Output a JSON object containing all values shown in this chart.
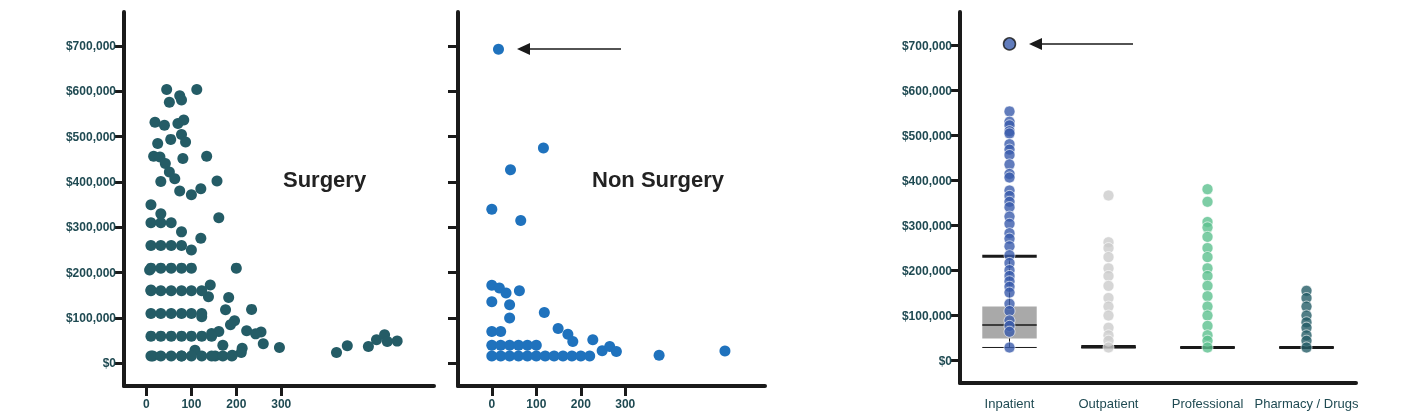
{
  "chart_data": [
    {
      "type": "scatter",
      "title": "Surgery",
      "color": "#245c66",
      "marker": "circle",
      "xlim": [
        -50,
        640
      ],
      "xticks": [
        0,
        100,
        200,
        300
      ],
      "ylim": [
        -50000,
        775000
      ],
      "yticks": [
        {
          "value": 0,
          "label": "$0"
        },
        {
          "value": 100000,
          "label": "$100,000"
        },
        {
          "value": 200000,
          "label": "$200,000"
        },
        {
          "value": 300000,
          "label": "$300,000"
        },
        {
          "value": 400000,
          "label": "$400,000"
        },
        {
          "value": 500000,
          "label": "$500,000"
        },
        {
          "value": 600000,
          "label": "$600,000"
        },
        {
          "value": 700000,
          "label": "$700,000"
        }
      ],
      "x": [
        45,
        112,
        51,
        74,
        78,
        19,
        40,
        70,
        83,
        25,
        54,
        78,
        87,
        16,
        30,
        81,
        134,
        42,
        51,
        63,
        32,
        157,
        100,
        121,
        74,
        161,
        121,
        200,
        183,
        176,
        234,
        196,
        187,
        223,
        255,
        243,
        260,
        296,
        213,
        211,
        423,
        447,
        494,
        512,
        530,
        536,
        558,
        7,
        10,
        142,
        138,
        145,
        161,
        123,
        108,
        14,
        78,
        153,
        191,
        10,
        10,
        10,
        10,
        10,
        10,
        10,
        10,
        32,
        32,
        32,
        32,
        32,
        32,
        32,
        32,
        55,
        55,
        55,
        55,
        55,
        55,
        55,
        78,
        78,
        78,
        78,
        78,
        78,
        78,
        100,
        100,
        100,
        100,
        100,
        100,
        123,
        123,
        123,
        123,
        145,
        145,
        170,
        170,
        190
      ],
      "values": [
        604000,
        604000,
        576000,
        590000,
        581000,
        532000,
        525000,
        529000,
        537000,
        485000,
        494000,
        505000,
        488000,
        457000,
        455000,
        452000,
        457000,
        441000,
        422000,
        407000,
        401000,
        402000,
        372000,
        385000,
        380000,
        321000,
        276000,
        210000,
        145000,
        118000,
        119000,
        94000,
        85000,
        72000,
        69000,
        65000,
        43000,
        35000,
        33000,
        24000,
        24000,
        39000,
        37000,
        52000,
        63000,
        48000,
        49000,
        206000,
        162000,
        173000,
        147000,
        66000,
        70000,
        103000,
        29000,
        16000,
        16000,
        16000,
        18000,
        16000,
        60000,
        110000,
        160000,
        210000,
        260000,
        310000,
        350000,
        16000,
        60000,
        110000,
        160000,
        210000,
        260000,
        310000,
        330000,
        16000,
        60000,
        110000,
        160000,
        210000,
        260000,
        310000,
        16000,
        60000,
        110000,
        160000,
        210000,
        260000,
        290000,
        16000,
        60000,
        110000,
        160000,
        210000,
        250000,
        16000,
        60000,
        110000,
        160000,
        16000,
        60000,
        16000,
        40000,
        16000
      ]
    },
    {
      "type": "scatter",
      "title": "Non Surgery",
      "color": "#1f72bd",
      "marker": "circle",
      "tick_labels": "x",
      "xlim": [
        -76,
        614
      ],
      "xticks": [
        0,
        100,
        200,
        300
      ],
      "ylim": [
        -50000,
        775000
      ],
      "yticks": [
        {
          "value": 0,
          "label": null
        },
        {
          "value": 100000,
          "label": null
        },
        {
          "value": 200000,
          "label": null
        },
        {
          "value": 300000,
          "label": null
        },
        {
          "value": 400000,
          "label": null
        },
        {
          "value": 500000,
          "label": null
        },
        {
          "value": 600000,
          "label": null
        },
        {
          "value": 700000,
          "label": null
        }
      ],
      "x": [
        15,
        116,
        42,
        0,
        65,
        0,
        17,
        32,
        62,
        118,
        0,
        40,
        149,
        171,
        227,
        182,
        248,
        265,
        280,
        376,
        524,
        0,
        20,
        40,
        60,
        80,
        100,
        120,
        140,
        160,
        180,
        200,
        220,
        0,
        20,
        40,
        60,
        80,
        100,
        0,
        20,
        40
      ],
      "values": [
        693000,
        475000,
        427000,
        340000,
        315000,
        172000,
        166000,
        155000,
        160000,
        112000,
        136000,
        129000,
        77000,
        64000,
        52000,
        48000,
        28000,
        37000,
        26000,
        18000,
        27000,
        16000,
        16000,
        16000,
        16000,
        16000,
        16000,
        16000,
        16000,
        16000,
        16000,
        16000,
        16000,
        40000,
        40000,
        40000,
        40000,
        40000,
        40000,
        70000,
        70000,
        100000
      ]
    },
    {
      "type": "box",
      "colors": [
        "#9a9a9a",
        "#1a1a1a",
        "#1a1a1a",
        "#1a1a1a"
      ],
      "categories": [
        "Inpatient",
        "Outpatient",
        "Professional",
        "Pharmacy / Drugs"
      ],
      "ylim": [
        -50000,
        775000
      ],
      "yticks": [
        {
          "value": 0,
          "label": "$0"
        },
        {
          "value": 100000,
          "label": "$100,000"
        },
        {
          "value": 200000,
          "label": "$200,000"
        },
        {
          "value": 300000,
          "label": "$300,000"
        },
        {
          "value": 400000,
          "label": "$400,000"
        },
        {
          "value": 500000,
          "label": "$500,000"
        },
        {
          "value": 600000,
          "label": "$600,000"
        },
        {
          "value": 700000,
          "label": "$700,000"
        }
      ],
      "boxes": [
        {
          "low": 29000,
          "q1": 49000,
          "median": 79000,
          "q3": 120000,
          "high": 232000,
          "outliers": [
            704000
          ]
        },
        {
          "low": 28000,
          "q1": 28000,
          "median": 29000,
          "q3": 31000,
          "high": 31000
        },
        {
          "low": 29000,
          "q1": 29000,
          "median": 29000,
          "q3": 29000,
          "high": 29000
        },
        {
          "low": 29000,
          "q1": 29000,
          "median": 29000,
          "q3": 29000,
          "high": 29000
        }
      ],
      "series": [
        {
          "type": "scatter",
          "color": "#3a5bab",
          "x": [
            "Inpatient",
            "Inpatient",
            "Inpatient",
            "Inpatient",
            "Inpatient",
            "Inpatient",
            "Inpatient",
            "Inpatient",
            "Inpatient",
            "Inpatient",
            "Inpatient",
            "Inpatient",
            "Inpatient",
            "Inpatient",
            "Inpatient",
            "Inpatient",
            "Inpatient",
            "Inpatient",
            "Inpatient",
            "Inpatient",
            "Inpatient",
            "Inpatient",
            "Inpatient",
            "Inpatient",
            "Inpatient",
            "Inpatient",
            "Inpatient",
            "Inpatient",
            "Inpatient",
            "Inpatient",
            "Inpatient",
            "Inpatient",
            "Inpatient"
          ],
          "values": [
            554000,
            531000,
            523000,
            510000,
            505000,
            481000,
            469000,
            457000,
            436000,
            415000,
            407000,
            378000,
            366000,
            353000,
            341000,
            320000,
            304000,
            283000,
            271000,
            254000,
            234000,
            217000,
            201000,
            188000,
            176000,
            164000,
            151000,
            126000,
            110000,
            89000,
            77000,
            64000,
            29000
          ]
        },
        {
          "type": "scatter",
          "color": "#cccccc",
          "x": [
            "Outpatient",
            "Outpatient",
            "Outpatient",
            "Outpatient",
            "Outpatient",
            "Outpatient",
            "Outpatient",
            "Outpatient",
            "Outpatient",
            "Outpatient",
            "Outpatient",
            "Outpatient",
            "Outpatient",
            "Outpatient"
          ],
          "values": [
            367000,
            263000,
            250000,
            230000,
            205000,
            188000,
            166000,
            139000,
            120000,
            100000,
            73000,
            56000,
            44000,
            29000
          ]
        },
        {
          "type": "scatter",
          "color": "#5cc08f",
          "x": [
            "Professional",
            "Professional",
            "Professional",
            "Professional",
            "Professional",
            "Professional",
            "Professional",
            "Professional",
            "Professional",
            "Professional",
            "Professional",
            "Professional",
            "Professional",
            "Professional",
            "Professional",
            "Professional",
            "Professional"
          ],
          "values": [
            381000,
            353000,
            308000,
            296000,
            275000,
            250000,
            230000,
            205000,
            188000,
            166000,
            143000,
            120000,
            100000,
            77000,
            56000,
            44000,
            29000
          ]
        },
        {
          "type": "scatter",
          "color": "#245c66",
          "x": [
            "Pharmacy / Drugs",
            "Pharmacy / Drugs",
            "Pharmacy / Drugs",
            "Pharmacy / Drugs",
            "Pharmacy / Drugs",
            "Pharmacy / Drugs",
            "Pharmacy / Drugs",
            "Pharmacy / Drugs",
            "Pharmacy / Drugs"
          ],
          "values": [
            155000,
            139000,
            120000,
            100000,
            85000,
            73000,
            56000,
            44000,
            29000
          ]
        }
      ]
    }
  ]
}
